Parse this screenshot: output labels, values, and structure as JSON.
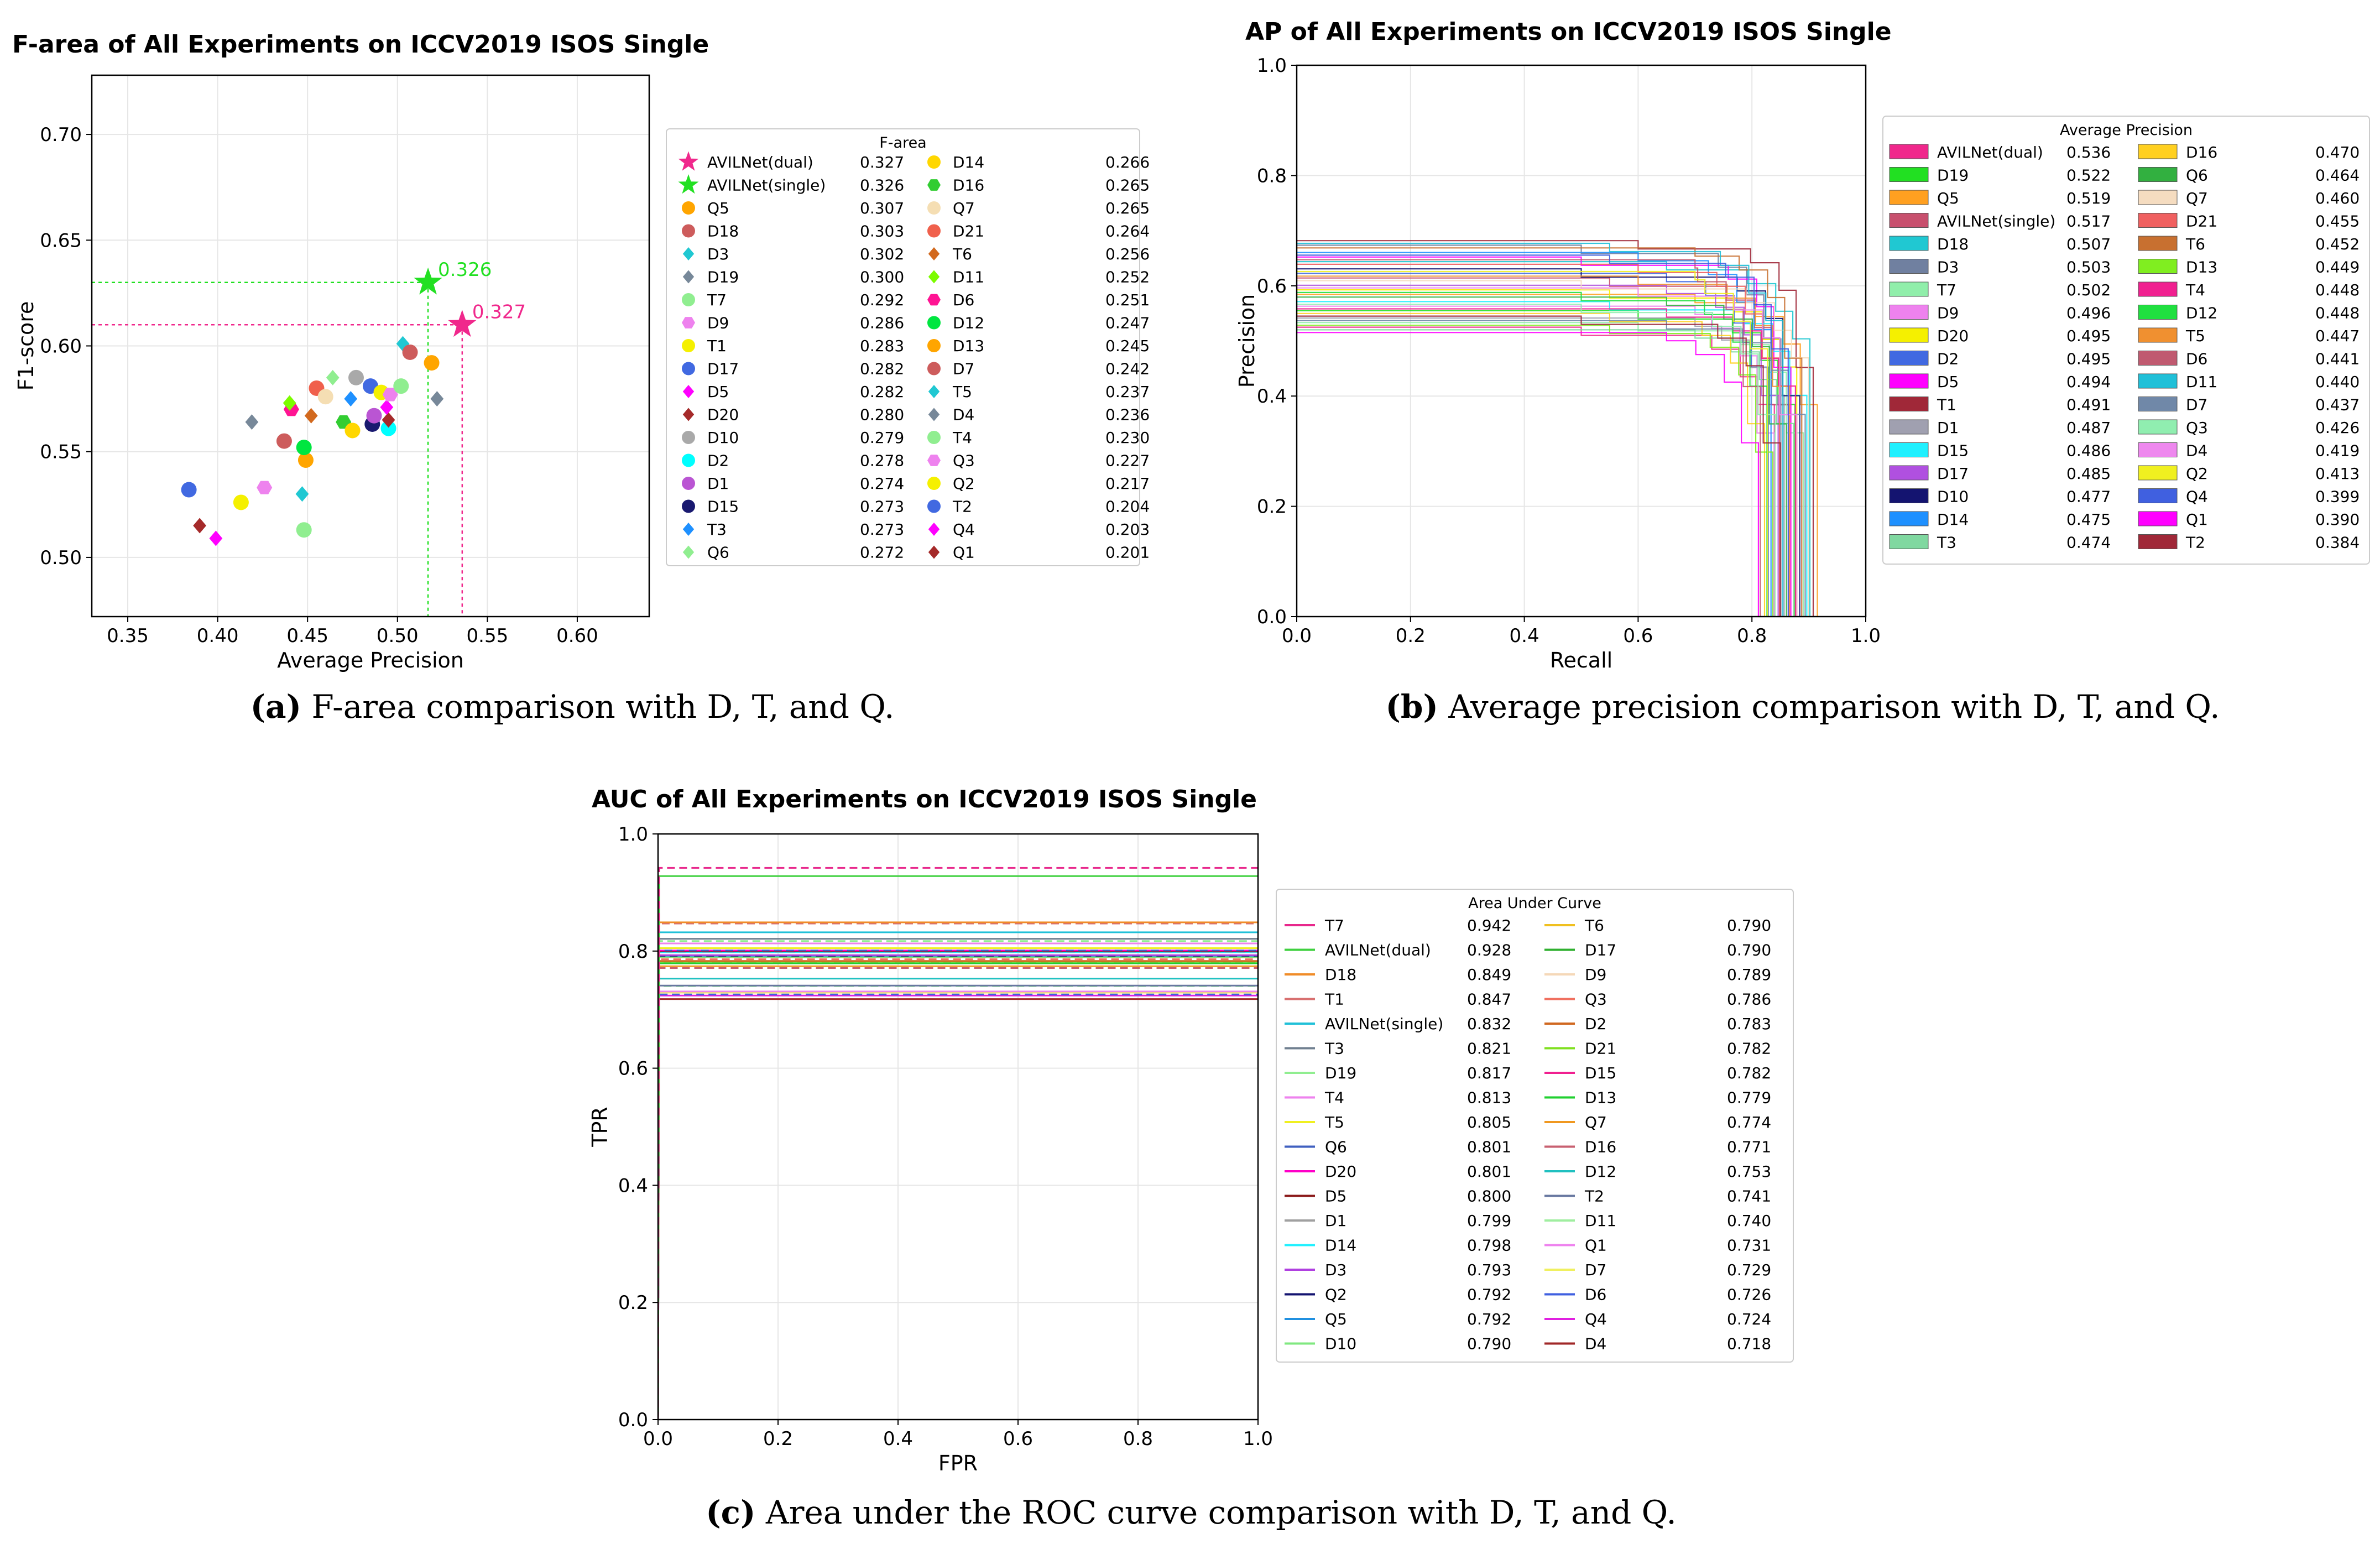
{
  "chart_data": [
    {
      "type": "scatter",
      "title": "F-area of All Experiments on ICCV2019 ISOS Single",
      "xlabel": "Average Precision",
      "ylabel": "F1-score",
      "xlim": [
        0.33,
        0.64
      ],
      "ylim": [
        0.472,
        0.728
      ],
      "xticks": [
        "0.35",
        "0.40",
        "0.45",
        "0.50",
        "0.55",
        "0.60"
      ],
      "yticks": [
        "0.50",
        "0.55",
        "0.60",
        "0.65",
        "0.70"
      ],
      "legend_title": "F-area",
      "guides": [
        {
          "x": 0.536,
          "y": 0.61,
          "color": "#f0288c",
          "label": "0.327"
        },
        {
          "x": 0.517,
          "y": 0.63,
          "color": "#22e022",
          "label": "0.326"
        }
      ],
      "series": [
        {
          "name": "AVILNet(dual)",
          "score": "0.327",
          "ap": 0.536,
          "f1": 0.61,
          "color": "#f0288c",
          "marker": "star"
        },
        {
          "name": "AVILNet(single)",
          "score": "0.326",
          "ap": 0.517,
          "f1": 0.63,
          "color": "#22e022",
          "marker": "star"
        },
        {
          "name": "Q5",
          "score": "0.307",
          "ap": 0.519,
          "f1": 0.592,
          "color": "#ffa500",
          "marker": "circle"
        },
        {
          "name": "D18",
          "score": "0.303",
          "ap": 0.507,
          "f1": 0.597,
          "color": "#cd5c5c",
          "marker": "circle"
        },
        {
          "name": "D3",
          "score": "0.302",
          "ap": 0.503,
          "f1": 0.601,
          "color": "#20c8d2",
          "marker": "diamond"
        },
        {
          "name": "D19",
          "score": "0.300",
          "ap": 0.522,
          "f1": 0.575,
          "color": "#778899",
          "marker": "diamond"
        },
        {
          "name": "T7",
          "score": "0.292",
          "ap": 0.502,
          "f1": 0.581,
          "color": "#90ee90",
          "marker": "circle"
        },
        {
          "name": "D9",
          "score": "0.286",
          "ap": 0.496,
          "f1": 0.577,
          "color": "#ee82ee",
          "marker": "hexagon"
        },
        {
          "name": "T1",
          "score": "0.283",
          "ap": 0.491,
          "f1": 0.578,
          "color": "#f5f000",
          "marker": "circle"
        },
        {
          "name": "D17",
          "score": "0.282",
          "ap": 0.485,
          "f1": 0.581,
          "color": "#4169e1",
          "marker": "circle"
        },
        {
          "name": "D5",
          "score": "0.282",
          "ap": 0.494,
          "f1": 0.571,
          "color": "#ff00ff",
          "marker": "diamond"
        },
        {
          "name": "D20",
          "score": "0.280",
          "ap": 0.495,
          "f1": 0.565,
          "color": "#a52a2a",
          "marker": "diamond"
        },
        {
          "name": "D10",
          "score": "0.279",
          "ap": 0.477,
          "f1": 0.585,
          "color": "#a9a9a9",
          "marker": "circle"
        },
        {
          "name": "D2",
          "score": "0.278",
          "ap": 0.495,
          "f1": 0.561,
          "color": "#00ffff",
          "marker": "circle"
        },
        {
          "name": "D1",
          "score": "0.274",
          "ap": 0.487,
          "f1": 0.567,
          "color": "#ba55d3",
          "marker": "circle"
        },
        {
          "name": "D15",
          "score": "0.273",
          "ap": 0.486,
          "f1": 0.563,
          "color": "#191970",
          "marker": "circle"
        },
        {
          "name": "T3",
          "score": "0.273",
          "ap": 0.474,
          "f1": 0.575,
          "color": "#1e90ff",
          "marker": "diamond"
        },
        {
          "name": "Q6",
          "score": "0.272",
          "ap": 0.464,
          "f1": 0.585,
          "color": "#90ee90",
          "marker": "diamond"
        },
        {
          "name": "D14",
          "score": "0.266",
          "ap": 0.475,
          "f1": 0.56,
          "color": "#ffd700",
          "marker": "circle"
        },
        {
          "name": "D16",
          "score": "0.265",
          "ap": 0.47,
          "f1": 0.564,
          "color": "#32cd32",
          "marker": "hexagon"
        },
        {
          "name": "Q7",
          "score": "0.265",
          "ap": 0.46,
          "f1": 0.576,
          "color": "#f5deb3",
          "marker": "circle"
        },
        {
          "name": "D21",
          "score": "0.264",
          "ap": 0.455,
          "f1": 0.58,
          "color": "#f0604c",
          "marker": "circle"
        },
        {
          "name": "T6",
          "score": "0.256",
          "ap": 0.452,
          "f1": 0.567,
          "color": "#d2691e",
          "marker": "diamond"
        },
        {
          "name": "D11",
          "score": "0.252",
          "ap": 0.44,
          "f1": 0.573,
          "color": "#7cfc00",
          "marker": "diamond"
        },
        {
          "name": "D6",
          "score": "0.251",
          "ap": 0.441,
          "f1": 0.57,
          "color": "#ff1493",
          "marker": "hexagon"
        },
        {
          "name": "D12",
          "score": "0.247",
          "ap": 0.448,
          "f1": 0.552,
          "color": "#00e640",
          "marker": "circle"
        },
        {
          "name": "D13",
          "score": "0.245",
          "ap": 0.449,
          "f1": 0.546,
          "color": "#ffa500",
          "marker": "circle"
        },
        {
          "name": "D7",
          "score": "0.242",
          "ap": 0.437,
          "f1": 0.555,
          "color": "#cd5c5c",
          "marker": "circle"
        },
        {
          "name": "T5",
          "score": "0.237",
          "ap": 0.447,
          "f1": 0.53,
          "color": "#20c8d2",
          "marker": "diamond"
        },
        {
          "name": "D4",
          "score": "0.236",
          "ap": 0.419,
          "f1": 0.564,
          "color": "#778899",
          "marker": "diamond"
        },
        {
          "name": "T4",
          "score": "0.230",
          "ap": 0.448,
          "f1": 0.513,
          "color": "#90ee90",
          "marker": "circle"
        },
        {
          "name": "Q3",
          "score": "0.227",
          "ap": 0.426,
          "f1": 0.533,
          "color": "#ee82ee",
          "marker": "hexagon"
        },
        {
          "name": "Q2",
          "score": "0.217",
          "ap": 0.413,
          "f1": 0.526,
          "color": "#f5f000",
          "marker": "circle"
        },
        {
          "name": "T2",
          "score": "0.204",
          "ap": 0.384,
          "f1": 0.532,
          "color": "#4169e1",
          "marker": "circle"
        },
        {
          "name": "Q4",
          "score": "0.203",
          "ap": 0.399,
          "f1": 0.509,
          "color": "#ff00ff",
          "marker": "diamond"
        },
        {
          "name": "Q1",
          "score": "0.201",
          "ap": 0.39,
          "f1": 0.515,
          "color": "#a52a2a",
          "marker": "diamond"
        }
      ]
    },
    {
      "type": "line",
      "title": "AP of All Experiments on ICCV2019 ISOS Single",
      "xlabel": "Recall",
      "ylabel": "Precision",
      "xlim": [
        0.0,
        1.0
      ],
      "ylim": [
        0.0,
        1.0
      ],
      "xticks": [
        "0.0",
        "0.2",
        "0.4",
        "0.6",
        "0.8",
        "1.0"
      ],
      "yticks": [
        "0.0",
        "0.2",
        "0.4",
        "0.6",
        "0.8",
        "1.0"
      ],
      "legend_title": "Average Precision",
      "series": [
        {
          "name": "AVILNet(dual)",
          "score": "0.536",
          "color": "#f0288c"
        },
        {
          "name": "D19",
          "score": "0.522",
          "color": "#22e022"
        },
        {
          "name": "Q5",
          "score": "0.519",
          "color": "#ffa020"
        },
        {
          "name": "AVILNet(single)",
          "score": "0.517",
          "color": "#c8506e"
        },
        {
          "name": "D18",
          "score": "0.507",
          "color": "#20c8d2"
        },
        {
          "name": "D3",
          "score": "0.503",
          "color": "#7080a0"
        },
        {
          "name": "T7",
          "score": "0.502",
          "color": "#90eeaa"
        },
        {
          "name": "D9",
          "score": "0.496",
          "color": "#ee82ee"
        },
        {
          "name": "D20",
          "score": "0.495",
          "color": "#f5f000"
        },
        {
          "name": "D2",
          "score": "0.495",
          "color": "#4169e1"
        },
        {
          "name": "D5",
          "score": "0.494",
          "color": "#ff00ff"
        },
        {
          "name": "T1",
          "score": "0.491",
          "color": "#a02838"
        },
        {
          "name": "D1",
          "score": "0.487",
          "color": "#a0a0b0"
        },
        {
          "name": "D15",
          "score": "0.486",
          "color": "#20f0ff"
        },
        {
          "name": "D17",
          "score": "0.485",
          "color": "#b050e0"
        },
        {
          "name": "D10",
          "score": "0.477",
          "color": "#141470"
        },
        {
          "name": "D14",
          "score": "0.475",
          "color": "#1e90ff"
        },
        {
          "name": "T3",
          "score": "0.474",
          "color": "#80d8a0"
        },
        {
          "name": "D16",
          "score": "0.470",
          "color": "#ffd020"
        },
        {
          "name": "Q6",
          "score": "0.464",
          "color": "#32b040"
        },
        {
          "name": "Q7",
          "score": "0.460",
          "color": "#f5dcc0"
        },
        {
          "name": "D21",
          "score": "0.455",
          "color": "#f06060"
        },
        {
          "name": "T6",
          "score": "0.452",
          "color": "#c87030"
        },
        {
          "name": "D13",
          "score": "0.449",
          "color": "#80ee20"
        },
        {
          "name": "T4",
          "score": "0.448",
          "color": "#f02090"
        },
        {
          "name": "D12",
          "score": "0.448",
          "color": "#20e040"
        },
        {
          "name": "T5",
          "score": "0.447",
          "color": "#f09030"
        },
        {
          "name": "D6",
          "score": "0.441",
          "color": "#c05a70"
        },
        {
          "name": "D11",
          "score": "0.440",
          "color": "#20c0d8"
        },
        {
          "name": "D7",
          "score": "0.437",
          "color": "#7088a8"
        },
        {
          "name": "Q3",
          "score": "0.426",
          "color": "#90eeb0"
        },
        {
          "name": "D4",
          "score": "0.419",
          "color": "#ee88ee"
        },
        {
          "name": "Q2",
          "score": "0.413",
          "color": "#f0f020"
        },
        {
          "name": "Q4",
          "score": "0.399",
          "color": "#4060e0"
        },
        {
          "name": "Q1",
          "score": "0.390",
          "color": "#ff00ff"
        },
        {
          "name": "T2",
          "score": "0.384",
          "color": "#a02838"
        }
      ]
    },
    {
      "type": "line",
      "title": "AUC of All Experiments on ICCV2019 ISOS Single",
      "xlabel": "FPR",
      "ylabel": "TPR",
      "xlim": [
        0.0,
        1.0
      ],
      "ylim": [
        0.0,
        1.0
      ],
      "xticks": [
        "0.0",
        "0.2",
        "0.4",
        "0.6",
        "0.8",
        "1.0"
      ],
      "yticks": [
        "0.0",
        "0.2",
        "0.4",
        "0.6",
        "0.8",
        "1.0"
      ],
      "legend_title": "Area Under Curve",
      "series": [
        {
          "name": "T7",
          "score": "0.942",
          "color": "#e8288c"
        },
        {
          "name": "AVILNet(dual)",
          "score": "0.928",
          "color": "#40d040"
        },
        {
          "name": "D18",
          "score": "0.849",
          "color": "#f08c28"
        },
        {
          "name": "T1",
          "score": "0.847",
          "color": "#d87070"
        },
        {
          "name": "AVILNet(single)",
          "score": "0.832",
          "color": "#20c0d8"
        },
        {
          "name": "T3",
          "score": "0.821",
          "color": "#708090"
        },
        {
          "name": "D19",
          "score": "0.817",
          "color": "#90ee90"
        },
        {
          "name": "T4",
          "score": "0.813",
          "color": "#ee82ee"
        },
        {
          "name": "T5",
          "score": "0.805",
          "color": "#f0f020"
        },
        {
          "name": "Q6",
          "score": "0.801",
          "color": "#4060c0"
        },
        {
          "name": "D20",
          "score": "0.801",
          "color": "#ff00c8"
        },
        {
          "name": "D5",
          "score": "0.800",
          "color": "#8b1a1a"
        },
        {
          "name": "D1",
          "score": "0.799",
          "color": "#a0a0a0"
        },
        {
          "name": "D14",
          "score": "0.798",
          "color": "#20f0ff"
        },
        {
          "name": "D3",
          "score": "0.793",
          "color": "#b040e0"
        },
        {
          "name": "Q2",
          "score": "0.792",
          "color": "#141470"
        },
        {
          "name": "Q5",
          "score": "0.792",
          "color": "#2090e0"
        },
        {
          "name": "D10",
          "score": "0.790",
          "color": "#80e880"
        },
        {
          "name": "T6",
          "score": "0.790",
          "color": "#f0c020"
        },
        {
          "name": "D17",
          "score": "0.790",
          "color": "#30b030"
        },
        {
          "name": "D9",
          "score": "0.789",
          "color": "#f5d8b8"
        },
        {
          "name": "Q3",
          "score": "0.786",
          "color": "#f07060"
        },
        {
          "name": "D2",
          "score": "0.783",
          "color": "#d06820"
        },
        {
          "name": "D21",
          "score": "0.782",
          "color": "#80e020"
        },
        {
          "name": "D15",
          "score": "0.782",
          "color": "#f02090"
        },
        {
          "name": "D13",
          "score": "0.779",
          "color": "#20d030"
        },
        {
          "name": "Q7",
          "score": "0.774",
          "color": "#f09820"
        },
        {
          "name": "D16",
          "score": "0.771",
          "color": "#c86070"
        },
        {
          "name": "D12",
          "score": "0.753",
          "color": "#20c0c0"
        },
        {
          "name": "T2",
          "score": "0.741",
          "color": "#6878a0"
        },
        {
          "name": "D11",
          "score": "0.740",
          "color": "#a0eea0"
        },
        {
          "name": "Q1",
          "score": "0.731",
          "color": "#ee82ee"
        },
        {
          "name": "D7",
          "score": "0.729",
          "color": "#f0f060"
        },
        {
          "name": "D6",
          "score": "0.726",
          "color": "#4060e0"
        },
        {
          "name": "Q4",
          "score": "0.724",
          "color": "#e020e0"
        },
        {
          "name": "D4",
          "score": "0.718",
          "color": "#a02828"
        }
      ]
    }
  ],
  "captions": {
    "a_label": "(a)",
    "a_text": " F-area comparison with D, T, and Q.",
    "b_label": "(b)",
    "b_text": " Average precision comparison with D, T, and Q.",
    "c_label": "(c)",
    "c_text": " Area under the ROC curve comparison with D, T, and Q."
  }
}
